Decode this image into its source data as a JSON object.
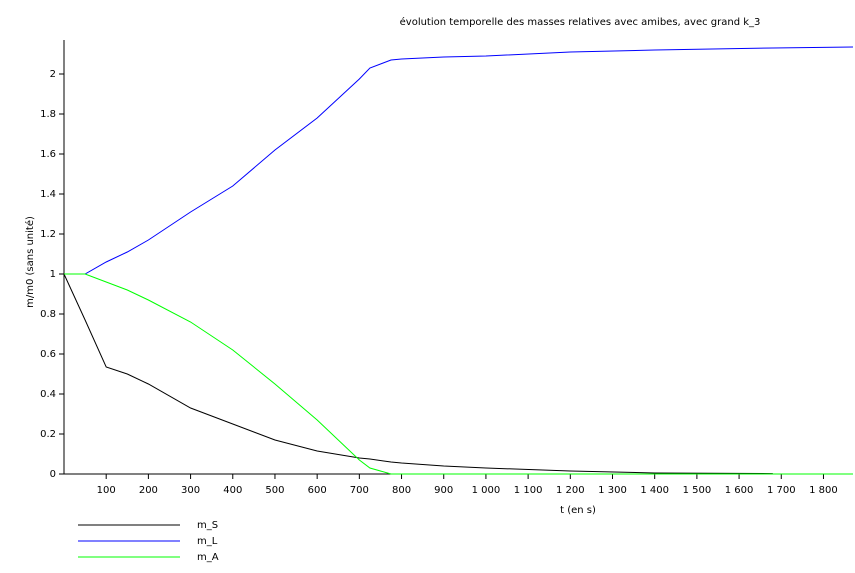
{
  "chart_data": {
    "type": "line",
    "title": "évolution temporelle des masses relatives avec amibes, avec grand k_3",
    "x_label": "t (en s)",
    "y_label": "m/m0 (sans unité)",
    "x": [
      0,
      50,
      100,
      150,
      200,
      300,
      400,
      500,
      600,
      700,
      725,
      775,
      800,
      900,
      1000,
      1200,
      1400,
      1680,
      1870
    ],
    "series": [
      {
        "name": "m_S",
        "color": "#000000",
        "values": [
          1,
          0.77,
          0.535,
          0.5,
          0.45,
          0.33,
          0.25,
          0.17,
          0.115,
          0.08,
          0.075,
          0.06,
          0.055,
          0.04,
          0.03,
          0.015,
          0.005,
          0.002,
          null
        ]
      },
      {
        "name": "m_L",
        "color": "#0000ff",
        "values": [
          1,
          1,
          1.06,
          1.11,
          1.17,
          1.31,
          1.44,
          1.62,
          1.78,
          1.975,
          2.03,
          2.07,
          2.075,
          2.085,
          2.09,
          2.11,
          2.12,
          2.13,
          2.135
        ]
      },
      {
        "name": "m_A",
        "color": "#00ff00",
        "values": [
          1,
          1,
          0.96,
          0.92,
          0.87,
          0.76,
          0.62,
          0.45,
          0.27,
          0.07,
          0.03,
          0,
          0,
          0,
          0,
          0,
          0,
          0,
          0
        ]
      }
    ],
    "xlim": [
      0,
      1870
    ],
    "xticks": [
      100,
      200,
      300,
      400,
      500,
      600,
      700,
      800,
      900,
      {
        "value": 1000,
        "label": "1 000"
      },
      {
        "value": 1100,
        "label": "1 100"
      },
      {
        "value": 1200,
        "label": "1 200"
      },
      {
        "value": 1300,
        "label": "1 300"
      },
      {
        "value": 1400,
        "label": "1 400"
      },
      {
        "value": 1500,
        "label": "1 500"
      },
      {
        "value": 1600,
        "label": "1 600"
      },
      {
        "value": 1700,
        "label": "1 700"
      },
      {
        "value": 1800,
        "label": "1 800"
      }
    ],
    "ylim": [
      0,
      2.17
    ],
    "yticks": [
      0,
      0.2,
      0.4,
      0.6,
      0.8,
      1,
      1.2,
      1.4,
      1.6,
      1.8,
      2
    ],
    "grid": false,
    "legend": "bottom-left"
  }
}
